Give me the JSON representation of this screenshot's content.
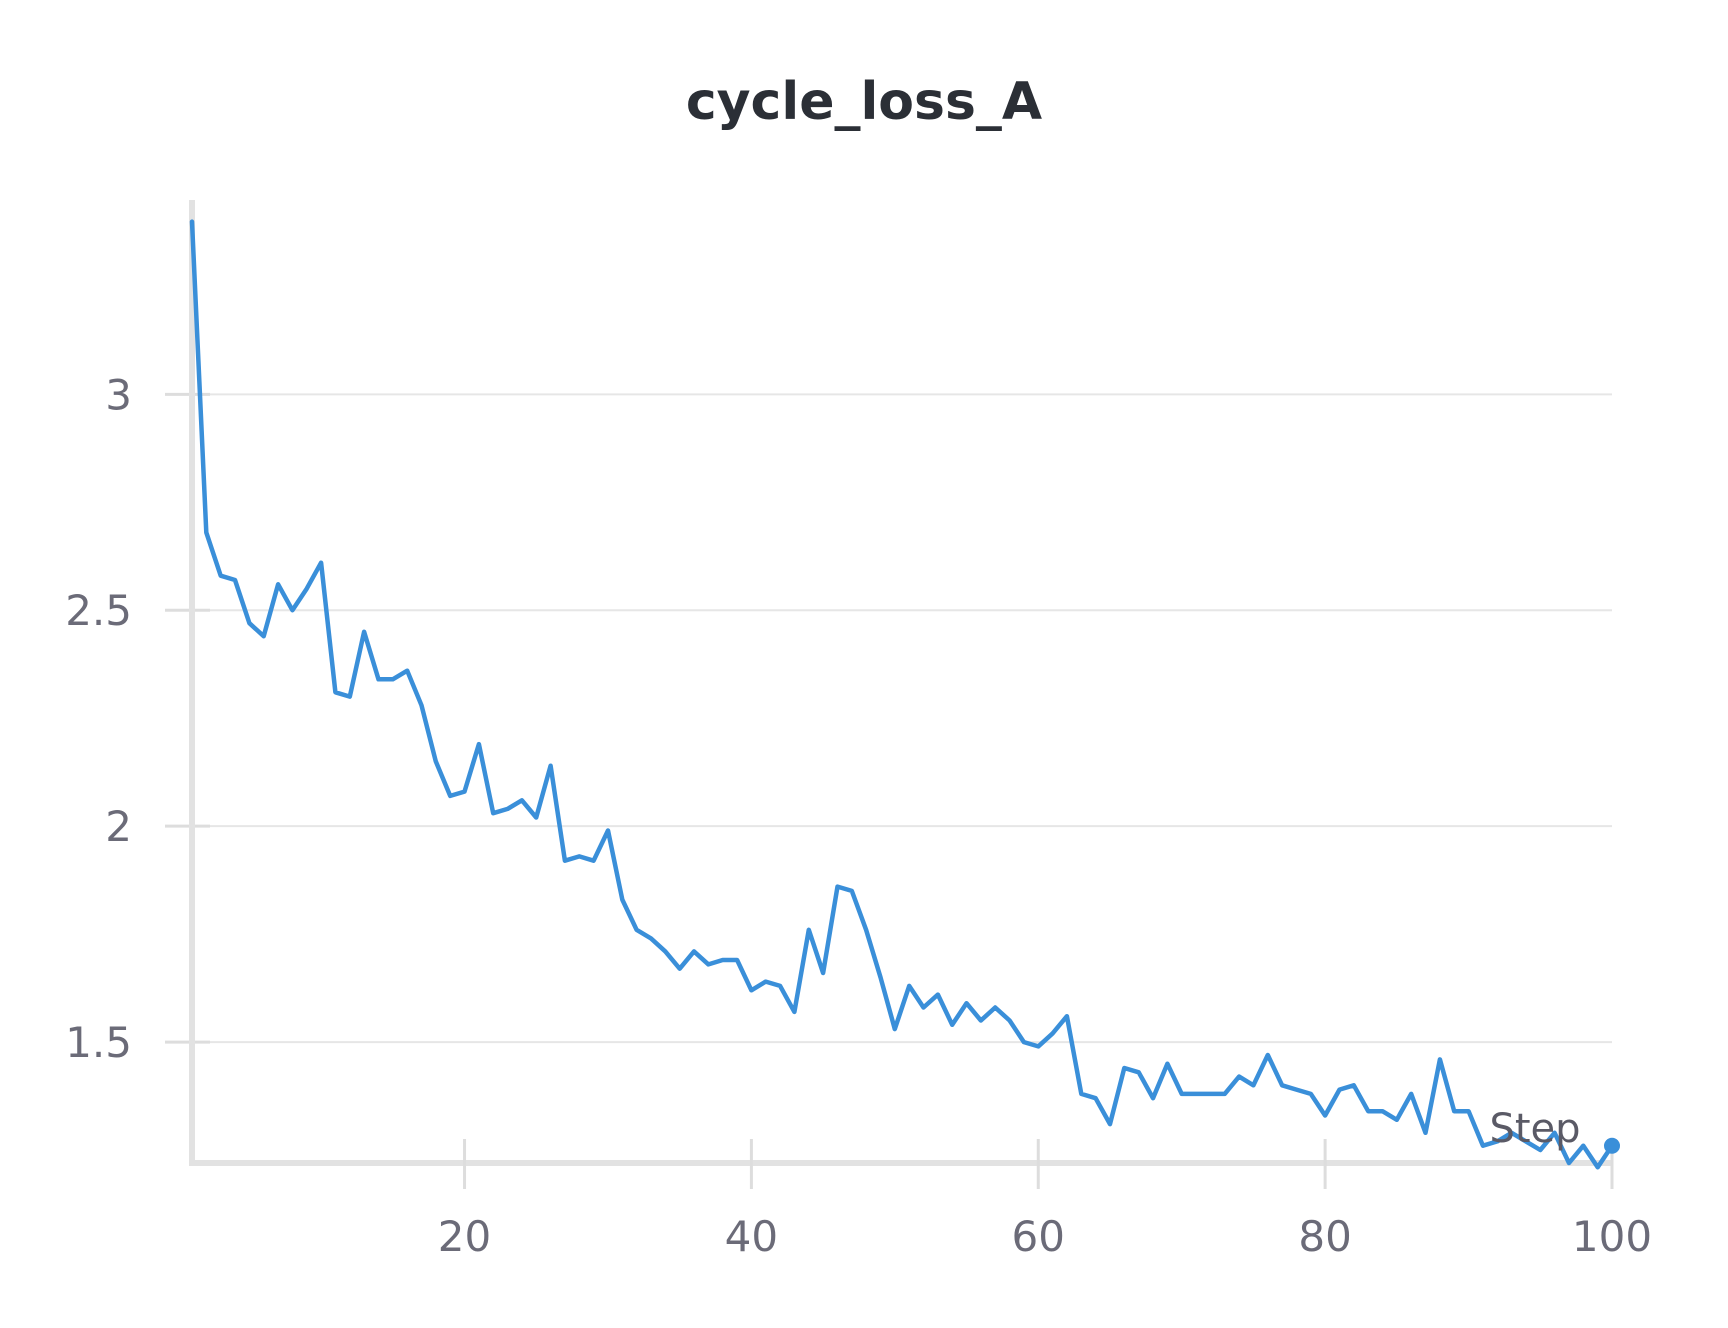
{
  "chart_data": {
    "type": "line",
    "title": "cycle_loss_A",
    "xlabel": "Step",
    "ylabel": "",
    "xlim": [
      1,
      100
    ],
    "ylim": [
      1.22,
      3.45
    ],
    "x_ticks": [
      20,
      40,
      60,
      80,
      100
    ],
    "y_ticks": [
      1.5,
      2,
      2.5,
      3
    ],
    "y_tick_labels": [
      "1.5",
      "2",
      "2.5",
      "3"
    ],
    "x_tick_labels": [
      "20",
      "40",
      "60",
      "80",
      "100"
    ],
    "grid": true,
    "legend": "none",
    "series": [
      {
        "color": "#3a8fd9",
        "x": [
          1,
          2,
          3,
          4,
          5,
          6,
          7,
          8,
          9,
          10,
          11,
          12,
          13,
          14,
          15,
          16,
          17,
          18,
          19,
          20,
          21,
          22,
          23,
          24,
          25,
          26,
          27,
          28,
          29,
          30,
          31,
          32,
          33,
          34,
          35,
          36,
          37,
          38,
          39,
          40,
          41,
          42,
          43,
          44,
          45,
          46,
          47,
          48,
          49,
          50,
          51,
          52,
          53,
          54,
          55,
          56,
          57,
          58,
          59,
          60,
          61,
          62,
          63,
          64,
          65,
          66,
          67,
          68,
          69,
          70,
          71,
          72,
          73,
          74,
          75,
          76,
          77,
          78,
          79,
          80,
          81,
          82,
          83,
          84,
          85,
          86,
          87,
          88,
          89,
          90,
          91,
          92,
          93,
          94,
          95,
          96,
          97,
          98,
          99,
          100
        ],
        "values": [
          3.4,
          2.68,
          2.58,
          2.57,
          2.47,
          2.44,
          2.56,
          2.5,
          2.55,
          2.61,
          2.31,
          2.3,
          2.45,
          2.34,
          2.34,
          2.36,
          2.28,
          2.15,
          2.07,
          2.08,
          2.19,
          2.03,
          2.04,
          2.06,
          2.02,
          2.14,
          1.92,
          1.93,
          1.92,
          1.99,
          1.83,
          1.76,
          1.74,
          1.71,
          1.67,
          1.71,
          1.68,
          1.69,
          1.69,
          1.62,
          1.64,
          1.63,
          1.57,
          1.76,
          1.66,
          1.86,
          1.85,
          1.76,
          1.65,
          1.53,
          1.63,
          1.58,
          1.61,
          1.54,
          1.59,
          1.55,
          1.58,
          1.55,
          1.5,
          1.49,
          1.52,
          1.56,
          1.38,
          1.37,
          1.31,
          1.44,
          1.43,
          1.37,
          1.45,
          1.38,
          1.38,
          1.38,
          1.38,
          1.42,
          1.4,
          1.47,
          1.4,
          1.39,
          1.38,
          1.33,
          1.39,
          1.4,
          1.34,
          1.34,
          1.32,
          1.38,
          1.29,
          1.46,
          1.34,
          1.34,
          1.26,
          1.27,
          1.29,
          1.27,
          1.25,
          1.29,
          1.22,
          1.26,
          1.21,
          1.26
        ]
      }
    ]
  }
}
